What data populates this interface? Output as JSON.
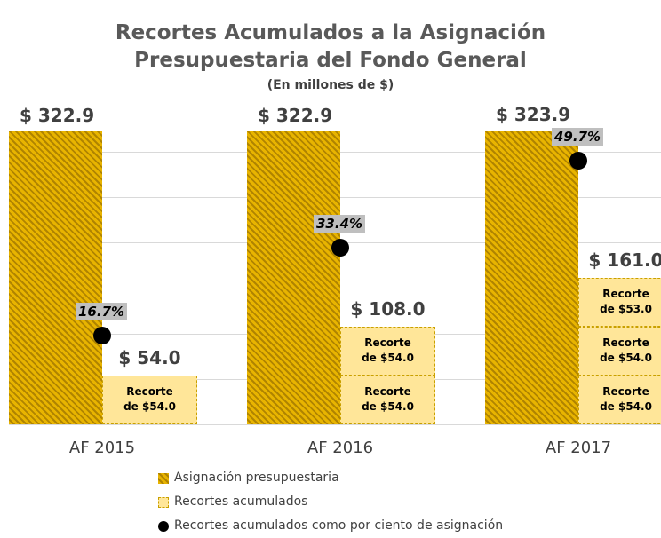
{
  "chart_data": {
    "type": "bar",
    "title": "Recortes Acumulados a la Asignación\nPresupuestaria del Fondo General",
    "subtitle": "(En millones de $)",
    "categories": [
      "AF 2015",
      "AF 2016",
      "AF 2017"
    ],
    "ylim": [
      0,
      350
    ],
    "yticks": [
      0,
      50,
      100,
      150,
      200,
      250,
      300,
      350
    ],
    "y2lim": [
      0,
      60
    ],
    "grid": true,
    "legend": "bottom",
    "series": [
      {
        "name": "Asignación presupuestaria",
        "color": "#e8b400",
        "values": [
          322.9,
          322.9,
          323.9
        ],
        "value_labels": [
          "$ 322.9",
          "$ 322.9",
          "$ 323.9"
        ]
      },
      {
        "name": "Recortes acumulados",
        "color": "#ffe699",
        "stacks": [
          [
            54.0
          ],
          [
            54.0,
            54.0
          ],
          [
            54.0,
            54.0,
            53.0
          ]
        ],
        "segment_labels": [
          [
            "Recorte\nde $54.0"
          ],
          [
            "Recorte\nde $54.0",
            "Recorte\nde $54.0"
          ],
          [
            "Recorte\nde $54.0",
            "Recorte\nde $54.0",
            "Recorte\nde $53.0"
          ]
        ],
        "total_labels": [
          "$ 54.0",
          "$ 108.0",
          "$ 161.0"
        ]
      },
      {
        "name": "Recortes acumulados como por ciento de asignación",
        "color": "#000000",
        "axis": "y2",
        "values": [
          16.7,
          33.4,
          49.7
        ],
        "value_labels": [
          "16.7%",
          "33.4%",
          "49.7%"
        ]
      }
    ]
  }
}
